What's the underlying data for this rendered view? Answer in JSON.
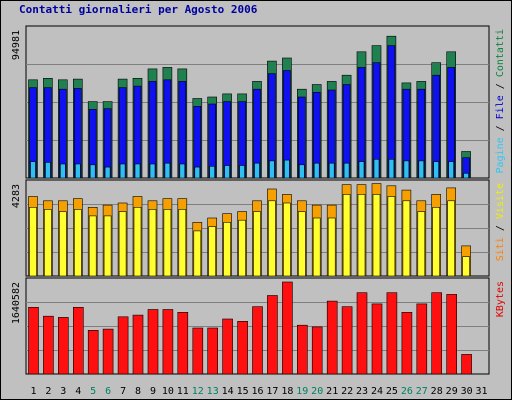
{
  "chart_data": {
    "type": "bar",
    "title": "Contatti giornalieri per Agosto 2006",
    "categories": [
      "1",
      "2",
      "3",
      "4",
      "5",
      "6",
      "7",
      "8",
      "9",
      "10",
      "11",
      "12",
      "13",
      "14",
      "15",
      "16",
      "17",
      "18",
      "19",
      "20",
      "21",
      "22",
      "23",
      "24",
      "25",
      "26",
      "27",
      "28",
      "29",
      "30",
      "31"
    ],
    "weekend_days": [
      "5",
      "6",
      "12",
      "13",
      "19",
      "20",
      "26",
      "27"
    ],
    "colors": {
      "title": "#0000a0",
      "day_label": "#000000",
      "weekend_label": "#008060",
      "grid": "#808080",
      "panel_bg": "#c0c0c0"
    },
    "panels": [
      {
        "name": "hits",
        "max_label": "94981",
        "ymax": 94981,
        "legend": [
          {
            "text": "Pagine",
            "color": "#2ec8f0"
          },
          {
            "text": " / ",
            "color": "#000000"
          },
          {
            "text": "File",
            "color": "#0000d0"
          },
          {
            "text": " / ",
            "color": "#000000"
          },
          {
            "text": "Contatti",
            "color": "#108040"
          }
        ],
        "series": [
          {
            "name": "Contatti",
            "color": "#208050",
            "values": [
              63000,
              64000,
              63000,
              63500,
              49000,
              49000,
              63500,
              64000,
              70000,
              71000,
              70000,
              51000,
              52000,
              54000,
              54000,
              62000,
              75000,
              77000,
              57000,
              60000,
              62000,
              66000,
              81000,
              85000,
              91000,
              61000,
              62000,
              74000,
              81000,
              17000,
              0
            ]
          },
          {
            "name": "File",
            "color": "#1010f0",
            "values": [
              58000,
              58000,
              57000,
              57500,
              44000,
              44500,
              58000,
              59000,
              62000,
              63000,
              62000,
              46000,
              47500,
              49000,
              49000,
              57000,
              67000,
              69000,
              52000,
              55000,
              56500,
              60000,
              71000,
              74000,
              85000,
              57000,
              57000,
              66000,
              71000,
              13000,
              0
            ]
          },
          {
            "name": "Pagine",
            "color": "#30c0f0",
            "values": [
              10500,
              10000,
              9000,
              9000,
              8500,
              7000,
              9000,
              9000,
              9000,
              9500,
              9000,
              7000,
              7500,
              8000,
              8000,
              9500,
              11000,
              11500,
              8500,
              9500,
              9500,
              9500,
              10500,
              12000,
              12000,
              11000,
              11000,
              10500,
              10500,
              3000,
              0
            ]
          }
        ]
      },
      {
        "name": "visits",
        "max_label": "4283",
        "ymax": 4283,
        "legend": [
          {
            "text": "Siti",
            "color": "#ff7f00"
          },
          {
            "text": " / ",
            "color": "#000000"
          },
          {
            "text": "Visite",
            "color": "#f0f000"
          }
        ],
        "series": [
          {
            "name": "Visite",
            "color": "#f5a000",
            "values": [
              3700,
              3500,
              3500,
              3600,
              3200,
              3300,
              3400,
              3700,
              3500,
              3600,
              3600,
              2500,
              2700,
              2900,
              3000,
              3500,
              4050,
              3800,
              3500,
              3300,
              3300,
              4250,
              4250,
              4300,
              4200,
              4000,
              3500,
              3800,
              4100,
              1400,
              0
            ]
          },
          {
            "name": "Siti",
            "color": "#ffff30",
            "values": [
              3200,
              3100,
              3000,
              3100,
              2800,
              2800,
              3000,
              3200,
              3100,
              3100,
              3100,
              2100,
              2300,
              2500,
              2600,
              3000,
              3500,
              3400,
              3000,
              2700,
              2700,
              3800,
              3800,
              3800,
              3700,
              3500,
              3000,
              3200,
              3500,
              900,
              0
            ]
          }
        ]
      },
      {
        "name": "kbytes",
        "max_label": "1640582",
        "ymax": 1640582,
        "legend": [
          {
            "text": "KBytes",
            "color": "#e00000"
          }
        ],
        "series": [
          {
            "name": "KBytes",
            "color": "#ff1010",
            "values": [
              1190000,
              1030000,
              1010000,
              1190000,
              780000,
              800000,
              1020000,
              1050000,
              1150000,
              1150000,
              1100000,
              820000,
              820000,
              980000,
              940000,
              1200000,
              1400000,
              1640000,
              870000,
              840000,
              1300000,
              1200000,
              1450000,
              1250000,
              1450000,
              1100000,
              1250000,
              1450000,
              1420000,
              350000,
              0
            ]
          }
        ]
      }
    ]
  }
}
